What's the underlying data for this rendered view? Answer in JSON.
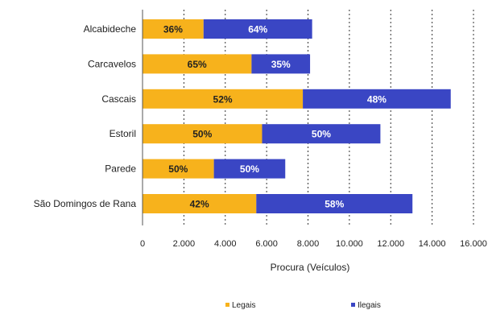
{
  "chart_data": {
    "type": "bar",
    "orientation": "horizontal",
    "stacked": true,
    "title": "",
    "xlabel": "Procura (Veículos)",
    "ylabel": "",
    "xlim": [
      0,
      16000
    ],
    "x_ticks": [
      0,
      2000,
      4000,
      6000,
      8000,
      10000,
      12000,
      14000,
      16000
    ],
    "x_tick_labels": [
      "0",
      "2.000",
      "4.000",
      "6.000",
      "8.000",
      "10.000",
      "12.000",
      "14.000",
      "16.000"
    ],
    "grid": "vertical dashed",
    "legend": "bottom",
    "categories": [
      "Alcabideche",
      "Carcavelos",
      "Cascais",
      "Estoril",
      "Parede",
      "São Domingos de Rana"
    ],
    "series": [
      {
        "name": "Legais",
        "color": "#f7b21c",
        "label_color": "#222222",
        "values": [
          2950,
          5270,
          7750,
          5780,
          3450,
          5500
        ],
        "labels": [
          "36%",
          "65%",
          "52%",
          "50%",
          "50%",
          "42%"
        ]
      },
      {
        "name": "Ilegais",
        "color": "#3a46c4",
        "label_color": "#ffffff",
        "values": [
          5250,
          2830,
          7150,
          5720,
          3450,
          7550
        ],
        "labels": [
          "64%",
          "35%",
          "48%",
          "50%",
          "50%",
          "58%"
        ]
      }
    ]
  }
}
